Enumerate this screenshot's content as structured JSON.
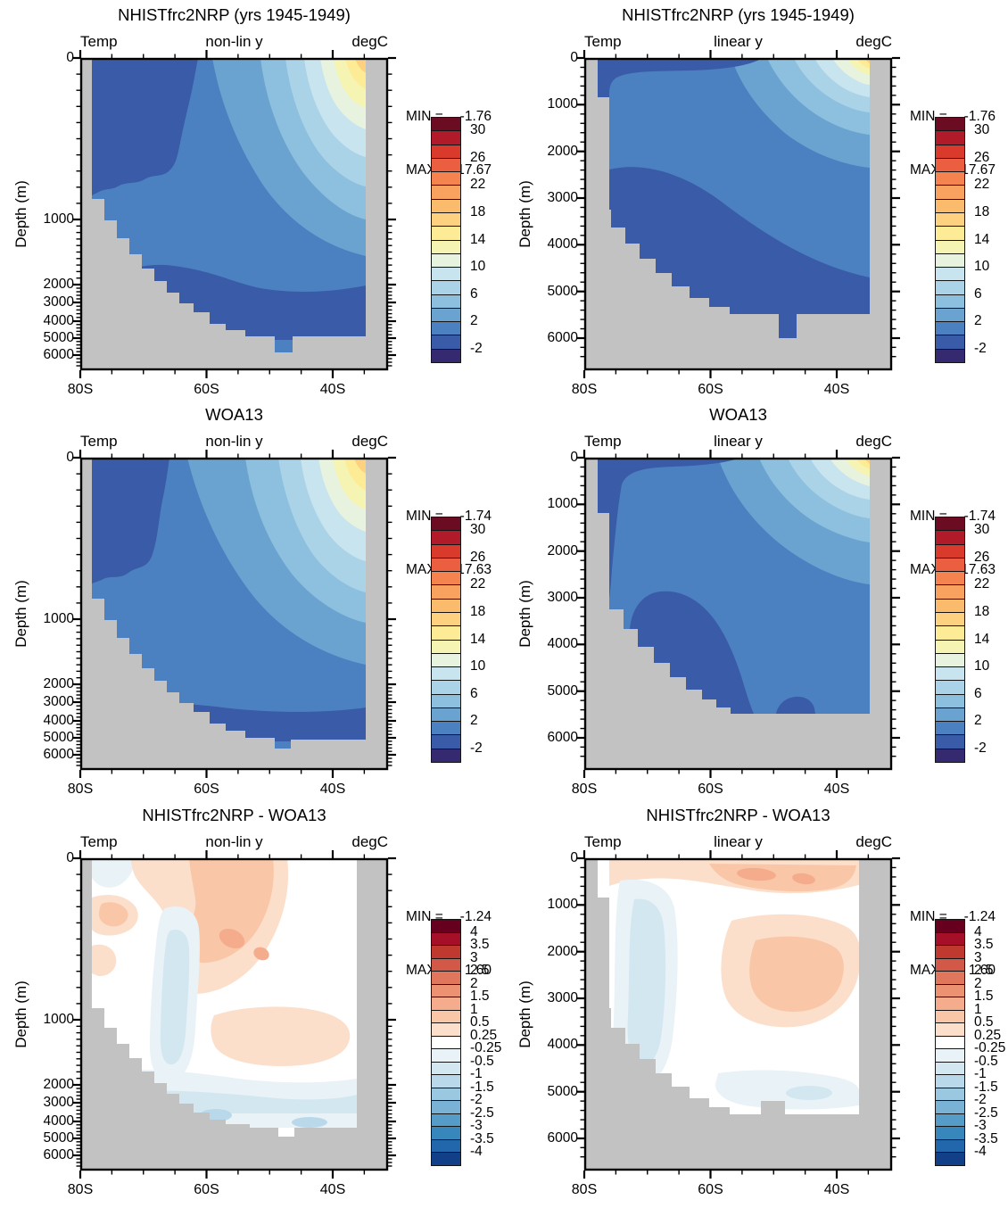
{
  "figure": {
    "kind": "latitude-depth ocean temperature sections",
    "grid": "3 rows x 2 columns",
    "row_titles": [
      "NHISTfrc2NRP (yrs 1945-1949)",
      "WOA13",
      "NHISTfrc2NRP - WOA13"
    ],
    "column_y_scales": [
      "non-lin y",
      "linear y"
    ]
  },
  "palettes": {
    "land_gray": "#c2c2c2",
    "temp": [
      "#352a70",
      "#3a5ba8",
      "#4b81c1",
      "#6ba3d0",
      "#8dc0de",
      "#abd3e8",
      "#c8e4ee",
      "#e7f3df",
      "#f5f4b3",
      "#fdeb95",
      "#fdd17f",
      "#fbbb6d",
      "#f9a15e",
      "#f48350",
      "#eb5f40",
      "#d93a2b",
      "#b11a28",
      "#6b0c22"
    ],
    "diff": [
      "#124088",
      "#2267ac",
      "#3787bc",
      "#569cc8",
      "#79b2d5",
      "#9ac8e0",
      "#b9d9eb",
      "#d3e7f1",
      "#e9f2f6",
      "#ffffff",
      "#fcdfcb",
      "#f9c7a8",
      "#f4ac8c",
      "#ec9273",
      "#e0765c",
      "#d25848",
      "#c0392e",
      "#a50f27",
      "#67001f"
    ]
  },
  "colorbars": {
    "temp_labels": [
      "30",
      "26",
      "22",
      "18",
      "14",
      "10",
      "6",
      "2",
      "-2"
    ],
    "diff_labels": [
      "4",
      "3.5",
      "3",
      "2.5",
      "2",
      "1.5",
      "1",
      "0.5",
      "0.25",
      "-0.25",
      "-0.5",
      "-1",
      "-1.5",
      "-2",
      "-2.5",
      "-3",
      "-3.5",
      "-4"
    ]
  },
  "panels": [
    {
      "position": "top-left",
      "title": "NHISTfrc2NRP (yrs 1945-1949)",
      "var_label": "Temp",
      "y_mode_label": "non-lin y",
      "units_label": "degC",
      "min_label": "MIN =",
      "min_value": "-1.76",
      "max_label": "MAX =",
      "max_value": "17.67",
      "x_tick_labels": [
        "80S",
        "60S",
        "40S"
      ],
      "y_tick_labels": [
        "0",
        "1000",
        "2000",
        "3000",
        "4000",
        "5000",
        "6000"
      ],
      "y_axis_title": "Depth (m)",
      "colorbar": "temp"
    },
    {
      "position": "top-right",
      "title": "NHISTfrc2NRP (yrs 1945-1949)",
      "var_label": "Temp",
      "y_mode_label": "linear y",
      "units_label": "degC",
      "min_label": "MIN =",
      "min_value": "-1.76",
      "max_label": "MAX =",
      "max_value": "17.67",
      "x_tick_labels": [
        "80S",
        "60S",
        "40S"
      ],
      "y_tick_labels": [
        "0",
        "1000",
        "2000",
        "3000",
        "4000",
        "5000",
        "6000"
      ],
      "y_axis_title": "Depth (m)",
      "colorbar": "temp"
    },
    {
      "position": "middle-left",
      "title": "WOA13",
      "var_label": "Temp",
      "y_mode_label": "non-lin y",
      "units_label": "degC",
      "min_label": "MIN =",
      "min_value": "-1.74",
      "max_label": "MAX =",
      "max_value": "17.63",
      "x_tick_labels": [
        "80S",
        "60S",
        "40S"
      ],
      "y_tick_labels": [
        "0",
        "1000",
        "2000",
        "3000",
        "4000",
        "5000",
        "6000"
      ],
      "y_axis_title": "Depth (m)",
      "colorbar": "temp"
    },
    {
      "position": "middle-right",
      "title": "WOA13",
      "var_label": "Temp",
      "y_mode_label": "linear y",
      "units_label": "degC",
      "min_label": "MIN =",
      "min_value": "-1.74",
      "max_label": "MAX =",
      "max_value": "17.63",
      "x_tick_labels": [
        "80S",
        "60S",
        "40S"
      ],
      "y_tick_labels": [
        "0",
        "1000",
        "2000",
        "3000",
        "4000",
        "5000",
        "6000"
      ],
      "y_axis_title": "Depth (m)",
      "colorbar": "temp"
    },
    {
      "position": "bottom-left",
      "title": "NHISTfrc2NRP - WOA13",
      "var_label": "Temp",
      "y_mode_label": "non-lin y",
      "units_label": "degC",
      "min_label": "MIN =",
      "min_value": "-1.24",
      "max_label": "MAX =",
      "max_value": "1.60",
      "x_tick_labels": [
        "80S",
        "60S",
        "40S"
      ],
      "y_tick_labels": [
        "0",
        "1000",
        "2000",
        "3000",
        "4000",
        "5000",
        "6000"
      ],
      "y_axis_title": "Depth (m)",
      "colorbar": "diff"
    },
    {
      "position": "bottom-right",
      "title": "NHISTfrc2NRP - WOA13",
      "var_label": "Temp",
      "y_mode_label": "linear y",
      "units_label": "degC",
      "min_label": "MIN =",
      "min_value": "-1.24",
      "max_label": "MAX =",
      "max_value": "1.60",
      "x_tick_labels": [
        "80S",
        "60S",
        "40S"
      ],
      "y_tick_labels": [
        "0",
        "1000",
        "2000",
        "3000",
        "4000",
        "5000",
        "6000"
      ],
      "y_axis_title": "Depth (m)",
      "colorbar": "diff"
    }
  ],
  "chart_data": [
    {
      "type": "heatmap",
      "panel": "top-left",
      "title": "NHISTfrc2NRP (yrs 1945-1949)",
      "variable": "Temp",
      "units": "degC",
      "y_scale": "non-linear",
      "min": -1.76,
      "max": 17.67,
      "x_ticks": [
        "80S",
        "60S",
        "40S"
      ],
      "x_minor_interval_deg": 5,
      "y_ticks_m": [
        0,
        1000,
        2000,
        3000,
        4000,
        5000,
        6000
      ],
      "ylabel": "Depth (m)",
      "contour_levels": [
        -2,
        0,
        2,
        4,
        6,
        8,
        10,
        12,
        14,
        16,
        18,
        20,
        22,
        24,
        26,
        28,
        30
      ],
      "legend_labels": [
        "30",
        "26",
        "22",
        "18",
        "14",
        "10",
        "6",
        "2",
        "-2"
      ],
      "field": "filled-contour latitude-depth section; cold (<0 degC) water at left/deep, warm (16-18 degC) surface water near 40S; gray = bathymetry/land mask"
    },
    {
      "type": "heatmap",
      "panel": "top-right",
      "title": "NHISTfrc2NRP (yrs 1945-1949)",
      "variable": "Temp",
      "units": "degC",
      "y_scale": "linear",
      "min": -1.76,
      "max": 17.67,
      "x_ticks": [
        "80S",
        "60S",
        "40S"
      ],
      "x_minor_interval_deg": 5,
      "y_ticks_m": [
        0,
        1000,
        2000,
        3000,
        4000,
        5000,
        6000
      ],
      "ylabel": "Depth (m)",
      "contour_levels": [
        -2,
        0,
        2,
        4,
        6,
        8,
        10,
        12,
        14,
        16,
        18,
        20,
        22,
        24,
        26,
        28,
        30
      ],
      "legend_labels": [
        "30",
        "26",
        "22",
        "18",
        "14",
        "10",
        "6",
        "2",
        "-2"
      ],
      "field": "same data as top-left drawn on linear depth axis; warm layers compressed near surface, sea floor near 5500 m"
    },
    {
      "type": "heatmap",
      "panel": "middle-left",
      "title": "WOA13",
      "variable": "Temp",
      "units": "degC",
      "y_scale": "non-linear",
      "min": -1.74,
      "max": 17.63,
      "x_ticks": [
        "80S",
        "60S",
        "40S"
      ],
      "x_minor_interval_deg": 5,
      "y_ticks_m": [
        0,
        1000,
        2000,
        3000,
        4000,
        5000,
        6000
      ],
      "ylabel": "Depth (m)",
      "contour_levels": [
        -2,
        0,
        2,
        4,
        6,
        8,
        10,
        12,
        14,
        16,
        18,
        20,
        22,
        24,
        26,
        28,
        30
      ],
      "legend_labels": [
        "30",
        "26",
        "22",
        "18",
        "14",
        "10",
        "6",
        "2",
        "-2"
      ],
      "field": "observed climatology section, pattern similar to model panel"
    },
    {
      "type": "heatmap",
      "panel": "middle-right",
      "title": "WOA13",
      "variable": "Temp",
      "units": "degC",
      "y_scale": "linear",
      "min": -1.74,
      "max": 17.63,
      "x_ticks": [
        "80S",
        "60S",
        "40S"
      ],
      "x_minor_interval_deg": 5,
      "y_ticks_m": [
        0,
        1000,
        2000,
        3000,
        4000,
        5000,
        6000
      ],
      "ylabel": "Depth (m)",
      "contour_levels": [
        -2,
        0,
        2,
        4,
        6,
        8,
        10,
        12,
        14,
        16,
        18,
        20,
        22,
        24,
        26,
        28,
        30
      ],
      "legend_labels": [
        "30",
        "26",
        "22",
        "18",
        "14",
        "10",
        "6",
        "2",
        "-2"
      ],
      "field": "observed climatology on linear depth axis; cold deep blob centered near 65S below 2500 m"
    },
    {
      "type": "heatmap",
      "panel": "bottom-left",
      "title": "NHISTfrc2NRP - WOA13",
      "variable": "Temp",
      "units": "degC",
      "y_scale": "non-linear",
      "min": -1.24,
      "max": 1.6,
      "x_ticks": [
        "80S",
        "60S",
        "40S"
      ],
      "x_minor_interval_deg": 5,
      "y_ticks_m": [
        0,
        1000,
        2000,
        3000,
        4000,
        5000,
        6000
      ],
      "ylabel": "Depth (m)",
      "contour_levels": [
        -4,
        -3.5,
        -3,
        -2.5,
        -2,
        -1.5,
        -1,
        -0.5,
        -0.25,
        0.25,
        0.5,
        1,
        1.5,
        2,
        2.5,
        3,
        3.5,
        4
      ],
      "legend_labels": [
        "4",
        "3.5",
        "3",
        "2.5",
        "2",
        "1.5",
        "1",
        "0.5",
        "0.25",
        "-0.25",
        "-0.5",
        "-1",
        "-1.5",
        "-2",
        "-2.5",
        "-3",
        "-3.5",
        "-4"
      ],
      "field": "model minus observations difference; warm bias (up to ~1.5 degC) in upper ocean 55-40S, cool bias band near 60S and along bottom"
    },
    {
      "type": "heatmap",
      "panel": "bottom-right",
      "title": "NHISTfrc2NRP - WOA13",
      "variable": "Temp",
      "units": "degC",
      "y_scale": "linear",
      "min": -1.24,
      "max": 1.6,
      "x_ticks": [
        "80S",
        "60S",
        "40S"
      ],
      "x_minor_interval_deg": 5,
      "y_ticks_m": [
        0,
        1000,
        2000,
        3000,
        4000,
        5000,
        6000
      ],
      "ylabel": "Depth (m)",
      "contour_levels": [
        -4,
        -3.5,
        -3,
        -2.5,
        -2,
        -1.5,
        -1,
        -0.5,
        -0.25,
        0.25,
        0.5,
        1,
        1.5,
        2,
        2.5,
        3,
        3.5,
        4
      ],
      "legend_labels": [
        "4",
        "3.5",
        "3",
        "2.5",
        "2",
        "1.5",
        "1",
        "0.5",
        "0.25",
        "-0.25",
        "-0.5",
        "-1",
        "-1.5",
        "-2",
        "-2.5",
        "-3",
        "-3.5",
        "-4"
      ],
      "field": "same difference field on linear depth axis; warm bias near surface 55-35S and mid-depth, weak cool bias elsewhere"
    }
  ]
}
